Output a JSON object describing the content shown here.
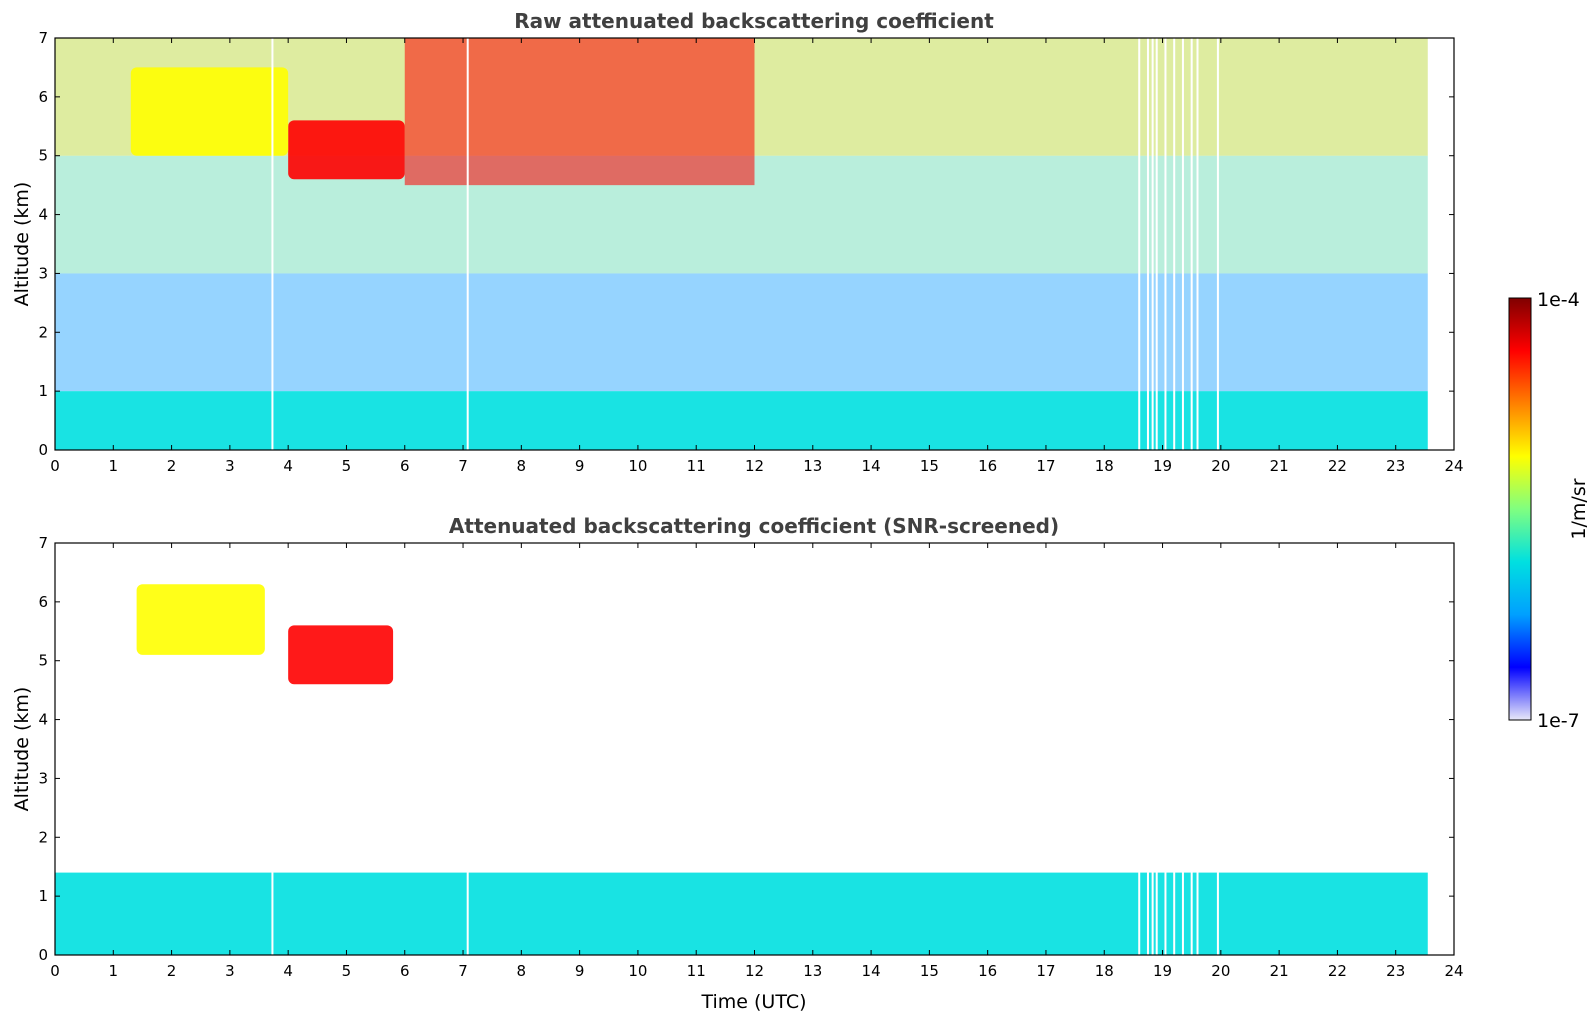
{
  "chart_data": [
    {
      "type": "heatmap",
      "title": "Raw attenuated backscattering coefficient",
      "xlabel": "",
      "ylabel": "Altitude (km)",
      "xlim": [
        0,
        24
      ],
      "ylim": [
        0,
        7
      ],
      "xticks": [
        "0",
        "1",
        "2",
        "3",
        "4",
        "5",
        "6",
        "7",
        "8",
        "9",
        "10",
        "11",
        "12",
        "13",
        "14",
        "15",
        "16",
        "17",
        "18",
        "19",
        "20",
        "21",
        "22",
        "23",
        "24"
      ],
      "yticks": [
        "0",
        "1",
        "2",
        "3",
        "4",
        "5",
        "6",
        "7"
      ],
      "data_end_time": 23.55,
      "gaps_utc": [
        3.73,
        7.08,
        18.6,
        18.75,
        18.83,
        18.9,
        19.05,
        19.2,
        19.35,
        19.5,
        19.6,
        19.95
      ],
      "features": [
        {
          "kind": "boundary-layer",
          "time": [
            0,
            23.55
          ],
          "altitude_km": [
            0,
            1.0
          ],
          "level": "1e-6"
        },
        {
          "kind": "cloud",
          "time": [
            4.0,
            6.0
          ],
          "altitude_km": [
            4.6,
            5.6
          ],
          "level": "3e-5"
        },
        {
          "kind": "cloud",
          "time": [
            1.3,
            4.0
          ],
          "altitude_km": [
            5.0,
            6.5
          ],
          "level": "8e-6"
        },
        {
          "kind": "noise",
          "time": [
            6.0,
            12.0
          ],
          "altitude_km": [
            4.5,
            7.0
          ],
          "level": "4e-5"
        }
      ]
    },
    {
      "type": "heatmap",
      "title": "Attenuated backscattering coefficient (SNR-screened)",
      "xlabel": "Time (UTC)",
      "ylabel": "Altitude (km)",
      "xlim": [
        0,
        24
      ],
      "ylim": [
        0,
        7
      ],
      "xticks": [
        "0",
        "1",
        "2",
        "3",
        "4",
        "5",
        "6",
        "7",
        "8",
        "9",
        "10",
        "11",
        "12",
        "13",
        "14",
        "15",
        "16",
        "17",
        "18",
        "19",
        "20",
        "21",
        "22",
        "23",
        "24"
      ],
      "yticks": [
        "0",
        "1",
        "2",
        "3",
        "4",
        "5",
        "6",
        "7"
      ],
      "data_end_time": 23.55,
      "features": [
        {
          "kind": "boundary-layer",
          "time": [
            0,
            23.55
          ],
          "altitude_km": [
            0,
            1.4
          ],
          "level": "1e-6"
        },
        {
          "kind": "cloud",
          "time": [
            4.0,
            5.8
          ],
          "altitude_km": [
            4.6,
            5.6
          ],
          "level": "3e-5"
        },
        {
          "kind": "cloud",
          "time": [
            1.4,
            3.6
          ],
          "altitude_km": [
            5.1,
            6.3
          ],
          "level": "8e-6"
        }
      ]
    }
  ],
  "colorbar": {
    "label": "1/m/sr",
    "min_label": "1e-7",
    "max_label": "1e-4",
    "scale": "log",
    "colormap": "jet",
    "colors": [
      "#e8e8f8",
      "#0000ff",
      "#00a0ff",
      "#00e0e0",
      "#80ff80",
      "#ffff00",
      "#ff8000",
      "#ff0000",
      "#800000"
    ]
  }
}
